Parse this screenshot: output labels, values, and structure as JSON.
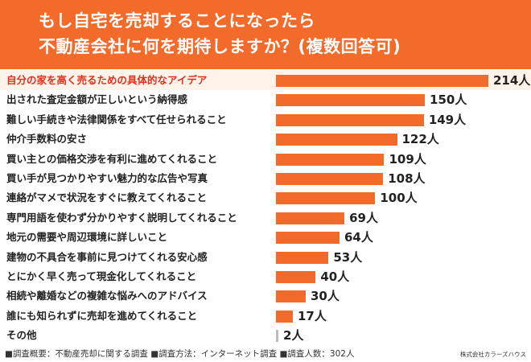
{
  "header": {
    "title_line1": "もし自宅を売却することになったら",
    "title_line2": "不動産会社に何を期待しますか？(複数回答可)"
  },
  "chart_data": {
    "type": "bar",
    "orientation": "horizontal",
    "unit": "人",
    "categories": [
      "自分の家を高く売るための具体的なアイデア",
      "出された査定金額が正しいという納得感",
      "難しい手続きや法律関係をすべて任せられること",
      "仲介手数料の安さ",
      "買い主との価格交渉を有利に進めてくれること",
      "買い手が見つかりやすい魅力的な広告や写真",
      "連絡がマメで状況をすぐに教えてくれること",
      "専門用語を使わず分かりやすく説明してくれること",
      "地元の需要や周辺環境に詳しいこと",
      "建物の不具合を事前に見つけてくれる安心感",
      "とにかく早く売って現金化してくれること",
      "相続や離婚などの複雑な悩みへのアドバイス",
      "誰にも知られずに売却を進めてくれること",
      "その他"
    ],
    "values": [
      214,
      150,
      149,
      122,
      109,
      108,
      100,
      69,
      64,
      53,
      40,
      30,
      17,
      2
    ],
    "value_labels": [
      "214人",
      "150人",
      "149人",
      "122人",
      "109人",
      "108人",
      "100人",
      "69人",
      "64人",
      "53人",
      "40人",
      "30人",
      "17人",
      "2人"
    ],
    "highlight_index": 0,
    "colors": {
      "bar": "#f26b2a",
      "minor_bar": "#bdbdbd",
      "highlight_text": "#e0301e",
      "highlight_row": "#fff3ea"
    }
  },
  "footer": {
    "survey_note": "■調査概要：不動産売却に関する調査 ■調査方法：インターネット調査 ■調査人数：302人",
    "credit": "株式会社カラーズハウス"
  }
}
